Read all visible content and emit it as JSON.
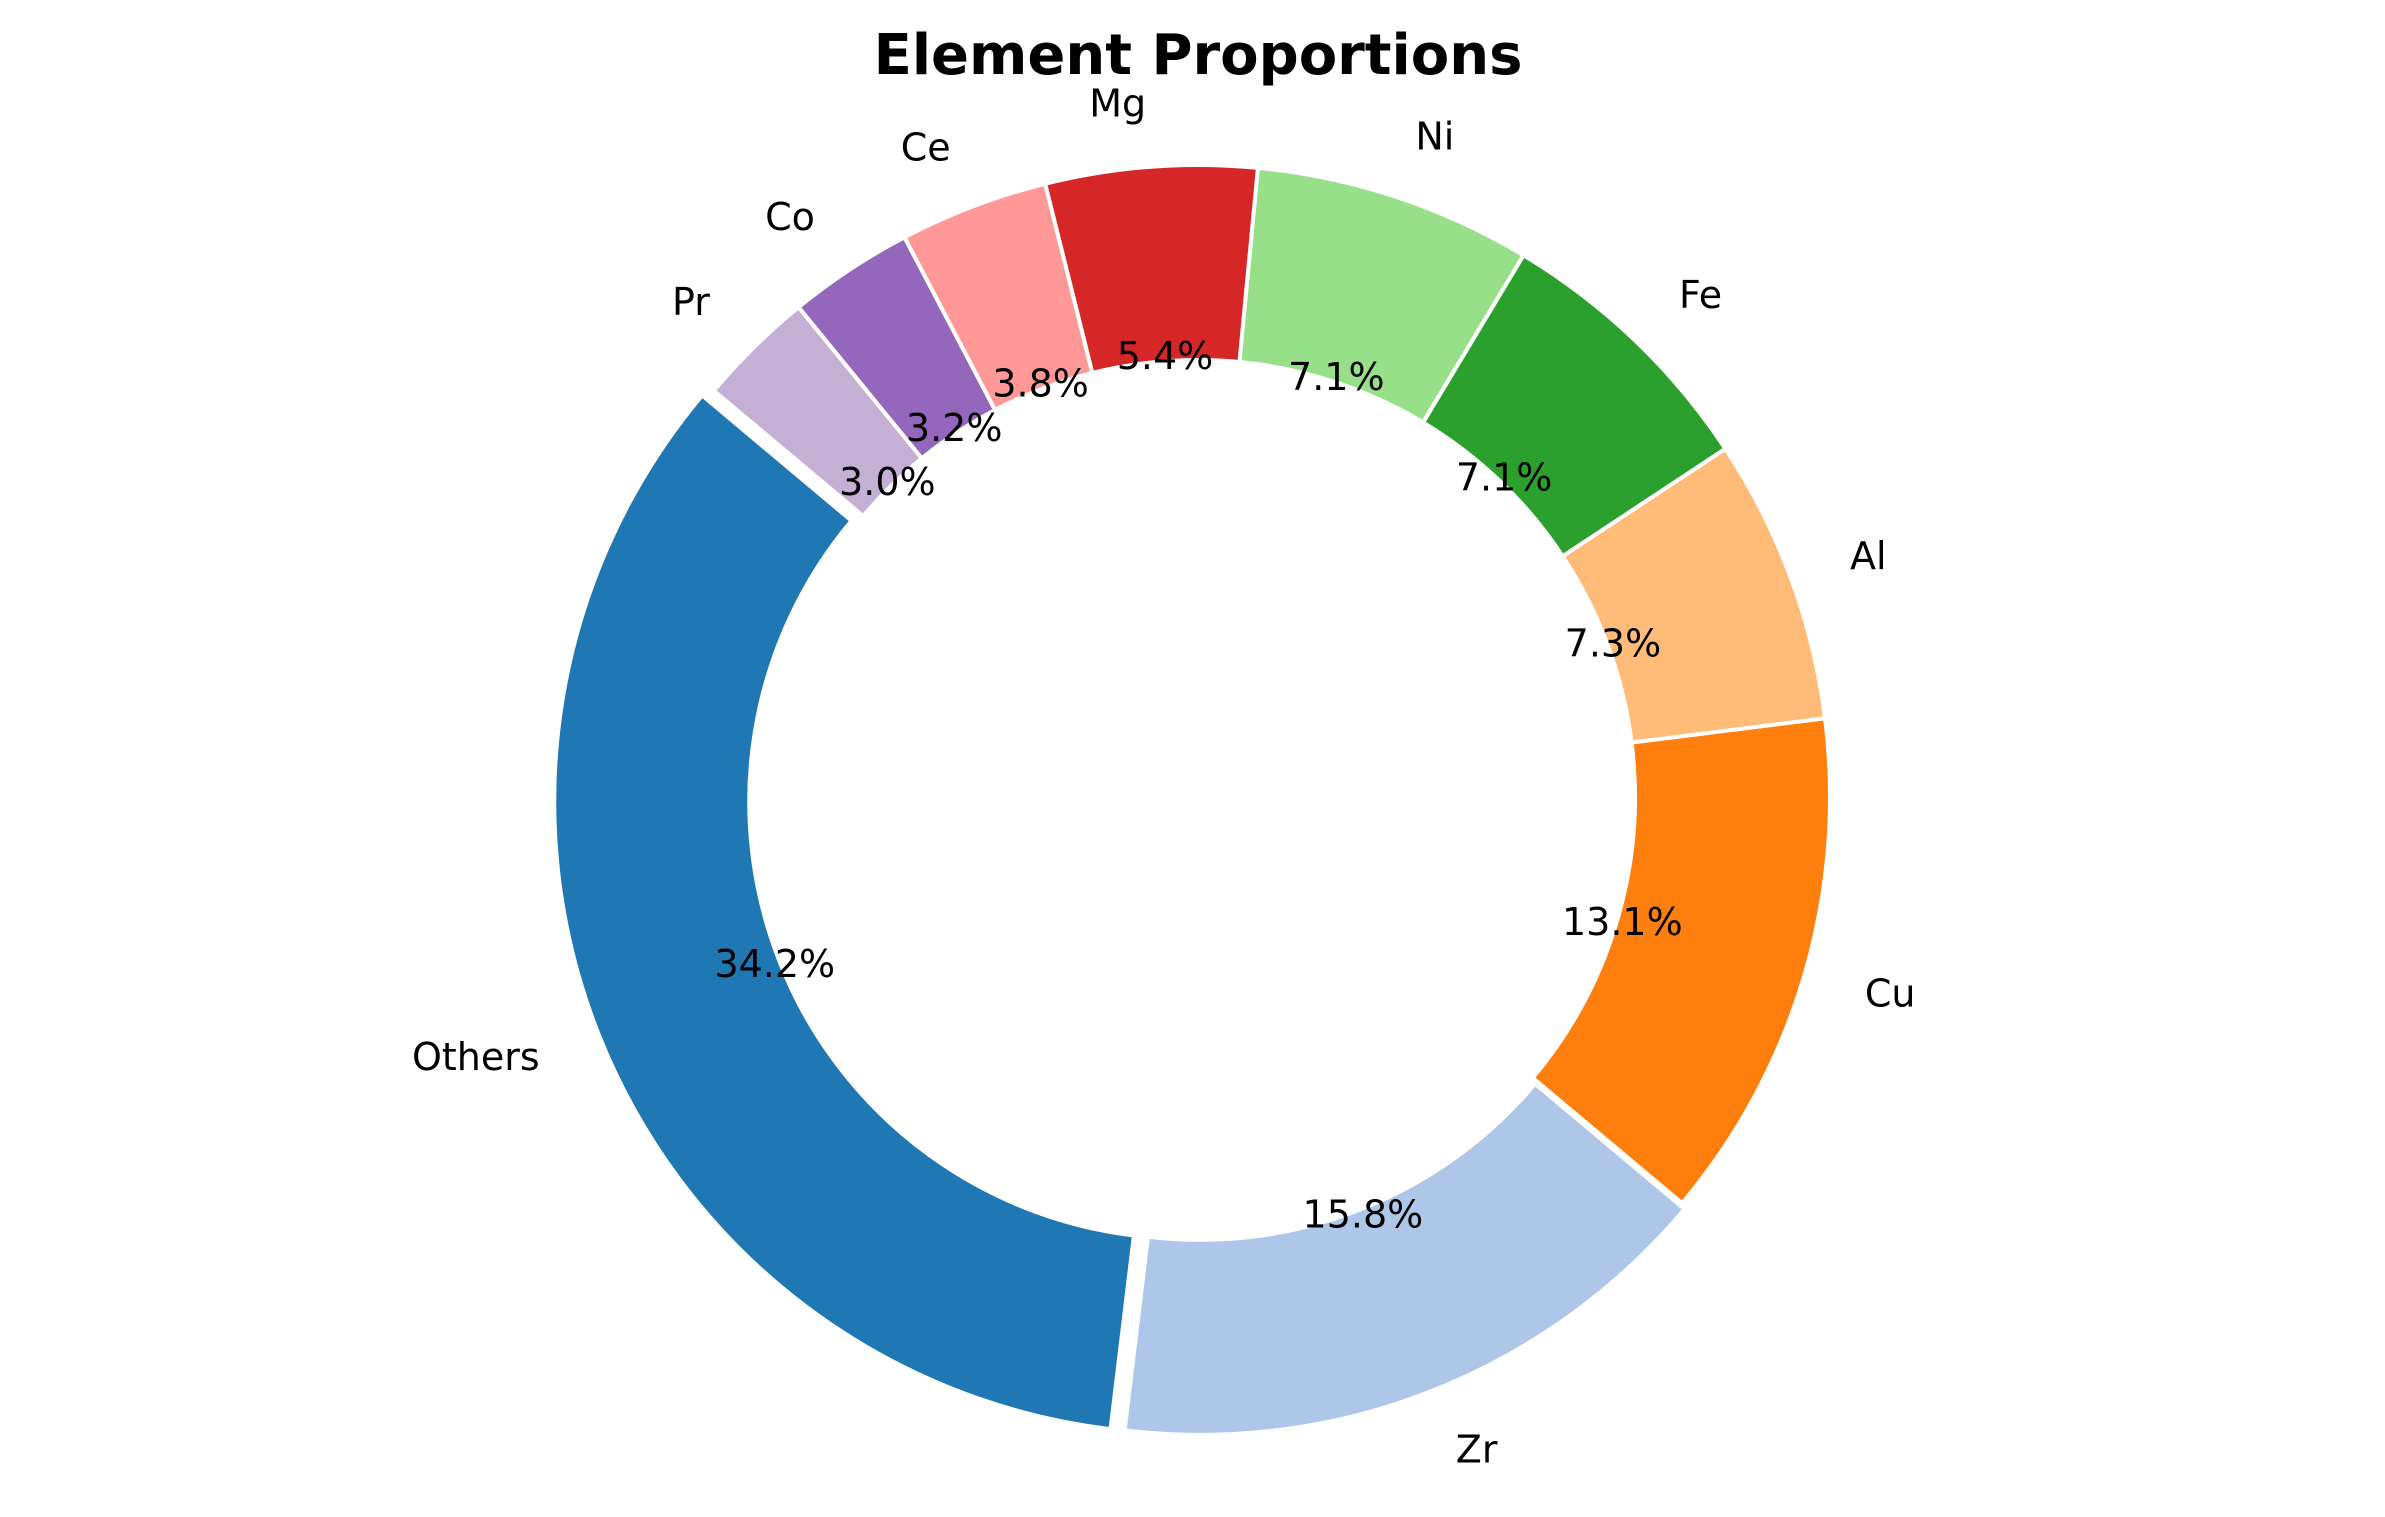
{
  "chart_data": {
    "type": "pie",
    "style": "donut",
    "title": "Element Proportions",
    "start_angle_deg": 140,
    "direction": "counterclockwise",
    "slices": [
      {
        "label": "Others",
        "value": 34.2,
        "pct_text": "34.2%",
        "color": "#1f77b4"
      },
      {
        "label": "Zr",
        "value": 15.8,
        "pct_text": "15.8%",
        "color": "#aec7e8"
      },
      {
        "label": "Cu",
        "value": 13.1,
        "pct_text": "13.1%",
        "color": "#ff7f0e"
      },
      {
        "label": "Al",
        "value": 7.3,
        "pct_text": "7.3%",
        "color": "#ffbb78"
      },
      {
        "label": "Fe",
        "value": 7.1,
        "pct_text": "7.1%",
        "color": "#2ca02c"
      },
      {
        "label": "Ni",
        "value": 7.1,
        "pct_text": "7.1%",
        "color": "#98df8a"
      },
      {
        "label": "Mg",
        "value": 5.4,
        "pct_text": "5.4%",
        "color": "#d62728"
      },
      {
        "label": "Ce",
        "value": 3.8,
        "pct_text": "3.8%",
        "color": "#ff9896"
      },
      {
        "label": "Co",
        "value": 3.2,
        "pct_text": "3.2%",
        "color": "#9467bd"
      },
      {
        "label": "Pr",
        "value": 3.0,
        "pct_text": "3.0%",
        "color": "#c5b0d5"
      }
    ],
    "explode": {
      "Others": 0.02,
      "Zr": 0.01
    }
  }
}
